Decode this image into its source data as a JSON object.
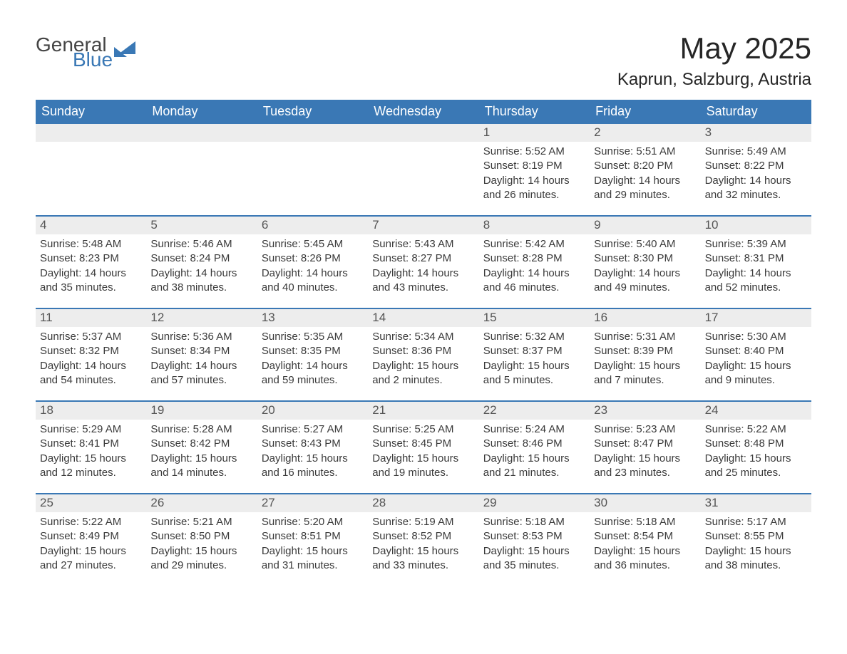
{
  "logo": {
    "word1": "General",
    "word2": "Blue",
    "mark_color": "#3a78b5"
  },
  "header": {
    "title": "May 2025",
    "location": "Kaprun, Salzburg, Austria",
    "title_fontsize": 42,
    "location_fontsize": 24
  },
  "calendar": {
    "header_bg": "#3a78b5",
    "header_text_color": "#ffffff",
    "week_divider_color": "#3a78b5",
    "daynum_bg": "#ededed",
    "daynum_color": "#555555",
    "body_text_color": "#3a3a3a",
    "dow": [
      "Sunday",
      "Monday",
      "Tuesday",
      "Wednesday",
      "Thursday",
      "Friday",
      "Saturday"
    ],
    "weeks": [
      [
        {
          "empty": true
        },
        {
          "empty": true
        },
        {
          "empty": true
        },
        {
          "empty": true
        },
        {
          "day": 1,
          "sunrise": "5:52 AM",
          "sunset": "8:19 PM",
          "daylight": "14 hours and 26 minutes."
        },
        {
          "day": 2,
          "sunrise": "5:51 AM",
          "sunset": "8:20 PM",
          "daylight": "14 hours and 29 minutes."
        },
        {
          "day": 3,
          "sunrise": "5:49 AM",
          "sunset": "8:22 PM",
          "daylight": "14 hours and 32 minutes."
        }
      ],
      [
        {
          "day": 4,
          "sunrise": "5:48 AM",
          "sunset": "8:23 PM",
          "daylight": "14 hours and 35 minutes."
        },
        {
          "day": 5,
          "sunrise": "5:46 AM",
          "sunset": "8:24 PM",
          "daylight": "14 hours and 38 minutes."
        },
        {
          "day": 6,
          "sunrise": "5:45 AM",
          "sunset": "8:26 PM",
          "daylight": "14 hours and 40 minutes."
        },
        {
          "day": 7,
          "sunrise": "5:43 AM",
          "sunset": "8:27 PM",
          "daylight": "14 hours and 43 minutes."
        },
        {
          "day": 8,
          "sunrise": "5:42 AM",
          "sunset": "8:28 PM",
          "daylight": "14 hours and 46 minutes."
        },
        {
          "day": 9,
          "sunrise": "5:40 AM",
          "sunset": "8:30 PM",
          "daylight": "14 hours and 49 minutes."
        },
        {
          "day": 10,
          "sunrise": "5:39 AM",
          "sunset": "8:31 PM",
          "daylight": "14 hours and 52 minutes."
        }
      ],
      [
        {
          "day": 11,
          "sunrise": "5:37 AM",
          "sunset": "8:32 PM",
          "daylight": "14 hours and 54 minutes."
        },
        {
          "day": 12,
          "sunrise": "5:36 AM",
          "sunset": "8:34 PM",
          "daylight": "14 hours and 57 minutes."
        },
        {
          "day": 13,
          "sunrise": "5:35 AM",
          "sunset": "8:35 PM",
          "daylight": "14 hours and 59 minutes."
        },
        {
          "day": 14,
          "sunrise": "5:34 AM",
          "sunset": "8:36 PM",
          "daylight": "15 hours and 2 minutes."
        },
        {
          "day": 15,
          "sunrise": "5:32 AM",
          "sunset": "8:37 PM",
          "daylight": "15 hours and 5 minutes."
        },
        {
          "day": 16,
          "sunrise": "5:31 AM",
          "sunset": "8:39 PM",
          "daylight": "15 hours and 7 minutes."
        },
        {
          "day": 17,
          "sunrise": "5:30 AM",
          "sunset": "8:40 PM",
          "daylight": "15 hours and 9 minutes."
        }
      ],
      [
        {
          "day": 18,
          "sunrise": "5:29 AM",
          "sunset": "8:41 PM",
          "daylight": "15 hours and 12 minutes."
        },
        {
          "day": 19,
          "sunrise": "5:28 AM",
          "sunset": "8:42 PM",
          "daylight": "15 hours and 14 minutes."
        },
        {
          "day": 20,
          "sunrise": "5:27 AM",
          "sunset": "8:43 PM",
          "daylight": "15 hours and 16 minutes."
        },
        {
          "day": 21,
          "sunrise": "5:25 AM",
          "sunset": "8:45 PM",
          "daylight": "15 hours and 19 minutes."
        },
        {
          "day": 22,
          "sunrise": "5:24 AM",
          "sunset": "8:46 PM",
          "daylight": "15 hours and 21 minutes."
        },
        {
          "day": 23,
          "sunrise": "5:23 AM",
          "sunset": "8:47 PM",
          "daylight": "15 hours and 23 minutes."
        },
        {
          "day": 24,
          "sunrise": "5:22 AM",
          "sunset": "8:48 PM",
          "daylight": "15 hours and 25 minutes."
        }
      ],
      [
        {
          "day": 25,
          "sunrise": "5:22 AM",
          "sunset": "8:49 PM",
          "daylight": "15 hours and 27 minutes."
        },
        {
          "day": 26,
          "sunrise": "5:21 AM",
          "sunset": "8:50 PM",
          "daylight": "15 hours and 29 minutes."
        },
        {
          "day": 27,
          "sunrise": "5:20 AM",
          "sunset": "8:51 PM",
          "daylight": "15 hours and 31 minutes."
        },
        {
          "day": 28,
          "sunrise": "5:19 AM",
          "sunset": "8:52 PM",
          "daylight": "15 hours and 33 minutes."
        },
        {
          "day": 29,
          "sunrise": "5:18 AM",
          "sunset": "8:53 PM",
          "daylight": "15 hours and 35 minutes."
        },
        {
          "day": 30,
          "sunrise": "5:18 AM",
          "sunset": "8:54 PM",
          "daylight": "15 hours and 36 minutes."
        },
        {
          "day": 31,
          "sunrise": "5:17 AM",
          "sunset": "8:55 PM",
          "daylight": "15 hours and 38 minutes."
        }
      ]
    ],
    "labels": {
      "sunrise": "Sunrise: ",
      "sunset": "Sunset: ",
      "daylight": "Daylight: "
    }
  }
}
